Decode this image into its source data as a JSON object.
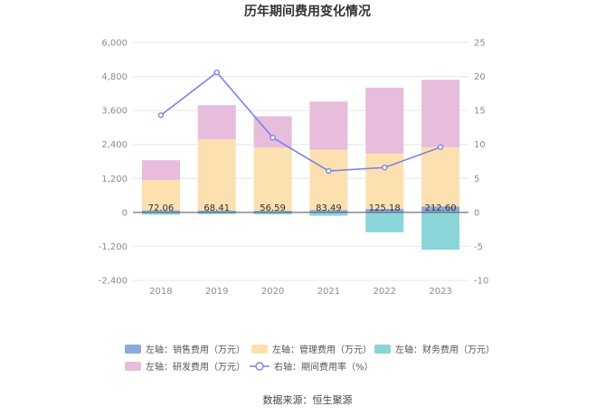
{
  "chart_data": {
    "type": "bar",
    "title": "历年期间费用变化情况",
    "categories": [
      "2018",
      "2019",
      "2020",
      "2021",
      "2022",
      "2023"
    ],
    "left_axis": {
      "ylim": [
        -2400,
        6000
      ],
      "ticks": [
        -2400,
        -1200,
        0,
        1200,
        2400,
        3600,
        4800,
        6000
      ],
      "tick_labels": [
        "-2,400",
        "-1,200",
        "0",
        "1,200",
        "2,400",
        "3,600",
        "4,800",
        "6,000"
      ]
    },
    "right_axis": {
      "ylim": [
        -10,
        25
      ],
      "ticks": [
        -10,
        -5,
        0,
        5,
        10,
        15,
        20,
        25
      ],
      "tick_labels": [
        "-10",
        "-5",
        "0",
        "5",
        "10",
        "15",
        "20",
        "25"
      ]
    },
    "series": [
      {
        "name": "左轴：销售费用（万元）",
        "type": "bar",
        "axis": "left",
        "color": "#8eaadb",
        "values": [
          72.06,
          68.41,
          56.59,
          83.49,
          125.18,
          212.6
        ]
      },
      {
        "name": "左轴：管理费用（万元）",
        "type": "bar",
        "axis": "left",
        "color": "#fde0b0",
        "values": [
          1070,
          2510,
          2230,
          2130,
          1950,
          2090
        ]
      },
      {
        "name": "左轴：财务费用（万元）",
        "type": "bar",
        "axis": "left",
        "color": "#8ad5d8",
        "values": [
          -80,
          -60,
          -70,
          -120,
          -700,
          -1320
        ]
      },
      {
        "name": "左轴：研发费用（万元）",
        "type": "bar",
        "axis": "left",
        "color": "#e8bcdb",
        "values": [
          700,
          1210,
          1110,
          1700,
          2330,
          2380
        ]
      },
      {
        "name": "右轴：期间费用率（%）",
        "type": "line",
        "axis": "right",
        "color": "#7b83eb",
        "values": [
          14.3,
          20.6,
          11.0,
          6.1,
          6.6,
          9.6
        ]
      }
    ],
    "data_labels": [
      "72.06",
      "68.41",
      "56.59",
      "83.49",
      "125.18",
      "212.60"
    ]
  },
  "source": "数据来源：恒生聚源"
}
